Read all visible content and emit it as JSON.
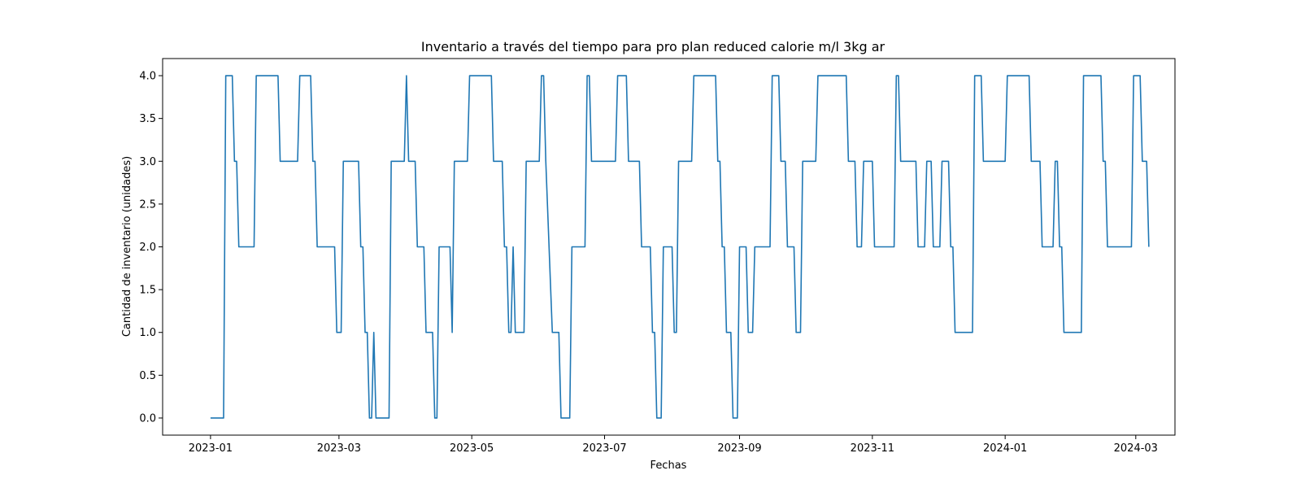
{
  "chart_data": {
    "type": "line",
    "step": true,
    "title": "Inventario a través del tiempo para pro plan reduced calorie m/l 3kg ar",
    "xlabel": "Fechas",
    "ylabel": "Cantidad de inventario (unidades)",
    "xlim": [
      "2022-12-10",
      "2024-03-19"
    ],
    "ylim": [
      -0.2,
      4.2
    ],
    "x_ticks": [
      "2023-01",
      "2023-03",
      "2023-05",
      "2023-07",
      "2023-09",
      "2023-11",
      "2024-01",
      "2024-03"
    ],
    "y_ticks": [
      "0.0",
      "0.5",
      "1.0",
      "1.5",
      "2.0",
      "2.5",
      "3.0",
      "3.5",
      "4.0"
    ],
    "grid": false,
    "legend": "none",
    "series": [
      {
        "color": "#1f77b4",
        "points": [
          [
            "2023-01-01",
            0
          ],
          [
            "2023-01-07",
            0
          ],
          [
            "2023-01-08",
            4
          ],
          [
            "2023-01-11",
            4
          ],
          [
            "2023-01-12",
            3
          ],
          [
            "2023-01-13",
            3
          ],
          [
            "2023-01-14",
            2
          ],
          [
            "2023-01-21",
            2
          ],
          [
            "2023-01-22",
            4
          ],
          [
            "2023-02-01",
            4
          ],
          [
            "2023-02-02",
            3
          ],
          [
            "2023-02-10",
            3
          ],
          [
            "2023-02-11",
            4
          ],
          [
            "2023-02-16",
            4
          ],
          [
            "2023-02-17",
            3
          ],
          [
            "2023-02-18",
            3
          ],
          [
            "2023-02-19",
            2
          ],
          [
            "2023-02-27",
            2
          ],
          [
            "2023-02-28",
            1
          ],
          [
            "2023-03-02",
            1
          ],
          [
            "2023-03-03",
            3
          ],
          [
            "2023-03-10",
            3
          ],
          [
            "2023-03-11",
            2
          ],
          [
            "2023-03-12",
            2
          ],
          [
            "2023-03-13",
            1
          ],
          [
            "2023-03-14",
            1
          ],
          [
            "2023-03-15",
            0
          ],
          [
            "2023-03-16",
            0
          ],
          [
            "2023-03-17",
            1
          ],
          [
            "2023-03-18",
            0
          ],
          [
            "2023-03-24",
            0
          ],
          [
            "2023-03-25",
            3
          ],
          [
            "2023-03-31",
            3
          ],
          [
            "2023-04-01",
            4
          ],
          [
            "2023-04-02",
            3
          ],
          [
            "2023-04-05",
            3
          ],
          [
            "2023-04-06",
            2
          ],
          [
            "2023-04-09",
            2
          ],
          [
            "2023-04-10",
            1
          ],
          [
            "2023-04-13",
            1
          ],
          [
            "2023-04-14",
            0
          ],
          [
            "2023-04-15",
            0
          ],
          [
            "2023-04-16",
            2
          ],
          [
            "2023-04-21",
            2
          ],
          [
            "2023-04-22",
            1
          ],
          [
            "2023-04-23",
            3
          ],
          [
            "2023-04-29",
            3
          ],
          [
            "2023-04-30",
            4
          ],
          [
            "2023-05-10",
            4
          ],
          [
            "2023-05-11",
            3
          ],
          [
            "2023-05-15",
            3
          ],
          [
            "2023-05-16",
            2
          ],
          [
            "2023-05-17",
            2
          ],
          [
            "2023-05-18",
            1
          ],
          [
            "2023-05-19",
            1
          ],
          [
            "2023-05-20",
            2
          ],
          [
            "2023-05-21",
            1
          ],
          [
            "2023-05-25",
            1
          ],
          [
            "2023-05-26",
            3
          ],
          [
            "2023-06-01",
            3
          ],
          [
            "2023-06-02",
            4
          ],
          [
            "2023-06-03",
            4
          ],
          [
            "2023-06-04",
            3
          ],
          [
            "2023-06-07",
            1
          ],
          [
            "2023-06-10",
            1
          ],
          [
            "2023-06-11",
            0
          ],
          [
            "2023-06-15",
            0
          ],
          [
            "2023-06-16",
            2
          ],
          [
            "2023-06-22",
            2
          ],
          [
            "2023-06-23",
            4
          ],
          [
            "2023-06-24",
            4
          ],
          [
            "2023-06-25",
            3
          ],
          [
            "2023-07-06",
            3
          ],
          [
            "2023-07-07",
            4
          ],
          [
            "2023-07-11",
            4
          ],
          [
            "2023-07-12",
            3
          ],
          [
            "2023-07-17",
            3
          ],
          [
            "2023-07-18",
            2
          ],
          [
            "2023-07-22",
            2
          ],
          [
            "2023-07-23",
            1
          ],
          [
            "2023-07-24",
            1
          ],
          [
            "2023-07-25",
            0
          ],
          [
            "2023-07-27",
            0
          ],
          [
            "2023-07-28",
            2
          ],
          [
            "2023-08-01",
            2
          ],
          [
            "2023-08-02",
            1
          ],
          [
            "2023-08-03",
            1
          ],
          [
            "2023-08-04",
            3
          ],
          [
            "2023-08-10",
            3
          ],
          [
            "2023-08-11",
            4
          ],
          [
            "2023-08-21",
            4
          ],
          [
            "2023-08-22",
            3
          ],
          [
            "2023-08-23",
            3
          ],
          [
            "2023-08-24",
            2
          ],
          [
            "2023-08-25",
            2
          ],
          [
            "2023-08-26",
            1
          ],
          [
            "2023-08-28",
            1
          ],
          [
            "2023-08-29",
            0
          ],
          [
            "2023-08-31",
            0
          ],
          [
            "2023-09-01",
            2
          ],
          [
            "2023-09-04",
            2
          ],
          [
            "2023-09-05",
            1
          ],
          [
            "2023-09-07",
            1
          ],
          [
            "2023-09-08",
            2
          ],
          [
            "2023-09-15",
            2
          ],
          [
            "2023-09-16",
            4
          ],
          [
            "2023-09-19",
            4
          ],
          [
            "2023-09-20",
            3
          ],
          [
            "2023-09-22",
            3
          ],
          [
            "2023-09-23",
            2
          ],
          [
            "2023-09-26",
            2
          ],
          [
            "2023-09-27",
            1
          ],
          [
            "2023-09-29",
            1
          ],
          [
            "2023-09-30",
            3
          ],
          [
            "2023-10-06",
            3
          ],
          [
            "2023-10-07",
            4
          ],
          [
            "2023-10-20",
            4
          ],
          [
            "2023-10-21",
            3
          ],
          [
            "2023-10-24",
            3
          ],
          [
            "2023-10-25",
            2
          ],
          [
            "2023-10-27",
            2
          ],
          [
            "2023-10-28",
            3
          ],
          [
            "2023-11-01",
            3
          ],
          [
            "2023-11-02",
            2
          ],
          [
            "2023-11-11",
            2
          ],
          [
            "2023-11-12",
            4
          ],
          [
            "2023-11-13",
            4
          ],
          [
            "2023-11-14",
            3
          ],
          [
            "2023-11-21",
            3
          ],
          [
            "2023-11-22",
            2
          ],
          [
            "2023-11-25",
            2
          ],
          [
            "2023-11-26",
            3
          ],
          [
            "2023-11-28",
            3
          ],
          [
            "2023-11-29",
            2
          ],
          [
            "2023-12-02",
            2
          ],
          [
            "2023-12-03",
            3
          ],
          [
            "2023-12-06",
            3
          ],
          [
            "2023-12-07",
            2
          ],
          [
            "2023-12-08",
            2
          ],
          [
            "2023-12-09",
            1
          ],
          [
            "2023-12-17",
            1
          ],
          [
            "2023-12-18",
            4
          ],
          [
            "2023-12-21",
            4
          ],
          [
            "2023-12-22",
            3
          ],
          [
            "2024-01-01",
            3
          ],
          [
            "2024-01-02",
            4
          ],
          [
            "2024-01-12",
            4
          ],
          [
            "2024-01-13",
            3
          ],
          [
            "2024-01-17",
            3
          ],
          [
            "2024-01-18",
            2
          ],
          [
            "2024-01-23",
            2
          ],
          [
            "2024-01-24",
            3
          ],
          [
            "2024-01-25",
            3
          ],
          [
            "2024-01-26",
            2
          ],
          [
            "2024-01-27",
            2
          ],
          [
            "2024-01-28",
            1
          ],
          [
            "2024-02-05",
            1
          ],
          [
            "2024-02-06",
            4
          ],
          [
            "2024-02-14",
            4
          ],
          [
            "2024-02-15",
            3
          ],
          [
            "2024-02-16",
            3
          ],
          [
            "2024-02-17",
            2
          ],
          [
            "2024-02-28",
            2
          ],
          [
            "2024-02-29",
            4
          ],
          [
            "2024-03-03",
            4
          ],
          [
            "2024-03-04",
            3
          ],
          [
            "2024-03-06",
            3
          ],
          [
            "2024-03-07",
            2
          ]
        ]
      }
    ]
  }
}
